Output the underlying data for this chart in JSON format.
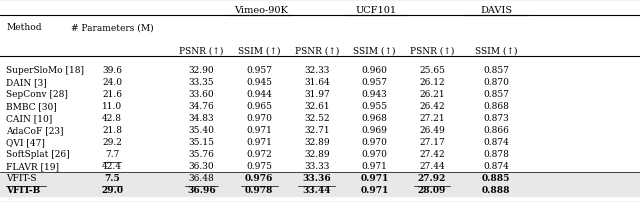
{
  "col_headers_top": [
    "",
    "",
    "Vimeo-90K",
    "",
    "UCF101",
    "",
    "DAVIS",
    ""
  ],
  "col_headers_mid": [
    "Method",
    "# Parameters (M)",
    "PSNR (↑)",
    "SSIM (↑)",
    "PSNR (↑)",
    "SSIM (↑)",
    "PSNR (↑)",
    "SSIM (↑)"
  ],
  "rows": [
    [
      "SuperSloMo [18]",
      "39.6",
      "32.90",
      "0.957",
      "32.33",
      "0.960",
      "25.65",
      "0.857"
    ],
    [
      "DAIN [3]",
      "24.0",
      "33.35",
      "0.945",
      "31.64",
      "0.957",
      "26.12",
      "0.870"
    ],
    [
      "SepConv [28]",
      "21.6",
      "33.60",
      "0.944",
      "31.97",
      "0.943",
      "26.21",
      "0.857"
    ],
    [
      "BMBC [30]",
      "11.0",
      "34.76",
      "0.965",
      "32.61",
      "0.955",
      "26.42",
      "0.868"
    ],
    [
      "CAIN [10]",
      "42.8",
      "34.83",
      "0.970",
      "32.52",
      "0.968",
      "27.21",
      "0.873"
    ],
    [
      "AdaCoF [23]",
      "21.8",
      "35.40",
      "0.971",
      "32.71",
      "0.969",
      "26.49",
      "0.866"
    ],
    [
      "QVI [47]",
      "29.2",
      "35.15",
      "0.971",
      "32.89",
      "0.970",
      "27.17",
      "0.874"
    ],
    [
      "SoftSplat [26]",
      "7.7",
      "35.76",
      "0.972",
      "32.89",
      "0.970",
      "27.42",
      "0.878"
    ],
    [
      "FLAVR [19]",
      "42.4",
      "36.30",
      "0.975",
      "33.33",
      "0.971",
      "27.44",
      "0.874"
    ],
    [
      "VFIT-S",
      "7.5",
      "36.48",
      "0.976",
      "33.36",
      "0.971",
      "27.92",
      "0.885"
    ],
    [
      "VFIT-B",
      "29.0",
      "36.96",
      "0.978",
      "33.44",
      "0.971",
      "28.09",
      "0.888"
    ]
  ],
  "bold_cells": {
    "10": [
      0,
      1,
      2,
      3,
      4,
      5,
      6,
      7
    ],
    "9": [
      1,
      3,
      4,
      5,
      6,
      7
    ]
  },
  "underline_cells": {
    "9": [
      0,
      1,
      2,
      3,
      4,
      6
    ],
    "10": []
  },
  "underline_method_9": true,
  "shaded_rows": [
    9,
    10
  ],
  "background_color": "#ffffff",
  "shade_color": "#e8e8e8",
  "figsize": [
    6.4,
    2.03
  ],
  "dpi": 100
}
